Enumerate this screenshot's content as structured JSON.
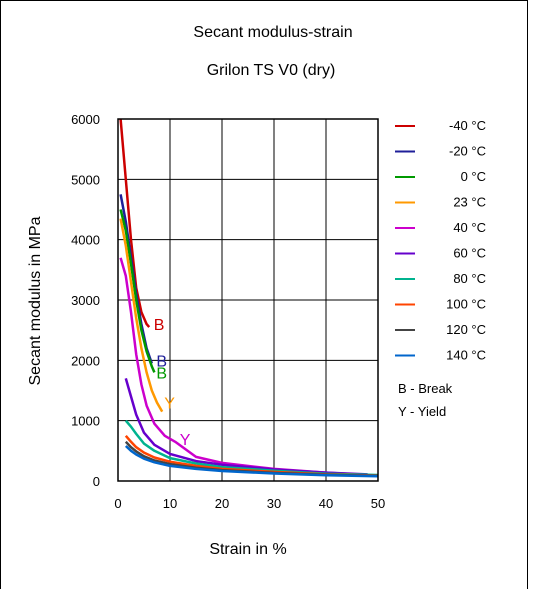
{
  "chart_data": {
    "type": "line",
    "title": "Secant modulus-strain",
    "subtitle": "Grilon TS V0 (dry)",
    "xlabel": "Strain in %",
    "ylabel": "Secant modulus in MPa",
    "xlim": [
      0,
      50
    ],
    "ylim": [
      0,
      6000
    ],
    "xticks": [
      "0",
      "10",
      "20",
      "30",
      "40",
      "50"
    ],
    "yticks": [
      "0",
      "1000",
      "2000",
      "3000",
      "4000",
      "5000",
      "6000"
    ],
    "grid": true,
    "legend_position": "right",
    "notes": [
      "B - Break",
      "Y - Yield"
    ],
    "series": [
      {
        "name": "-40 °C",
        "color": "#cc0000",
        "points": [
          [
            0.5,
            6000
          ],
          [
            1.5,
            5000
          ],
          [
            2.5,
            4000
          ],
          [
            3.5,
            3200
          ],
          [
            4.5,
            2800
          ],
          [
            5.5,
            2600
          ],
          [
            6.0,
            2550
          ]
        ],
        "label": "B",
        "label_at": [
          6.5,
          2600
        ]
      },
      {
        "name": "-20 °C",
        "color": "#1f1f99",
        "points": [
          [
            0.5,
            4750
          ],
          [
            1.5,
            4300
          ],
          [
            2.5,
            3700
          ],
          [
            3.5,
            3100
          ],
          [
            4.5,
            2600
          ],
          [
            5.5,
            2200
          ],
          [
            6.5,
            1950
          ]
        ],
        "label": "B",
        "label_at": [
          7.0,
          2000
        ]
      },
      {
        "name": "0 °C",
        "color": "#009900",
        "points": [
          [
            0.5,
            4500
          ],
          [
            1.5,
            4150
          ],
          [
            2.5,
            3600
          ],
          [
            3.5,
            3000
          ],
          [
            4.5,
            2500
          ],
          [
            5.5,
            2150
          ],
          [
            6.5,
            1900
          ],
          [
            7.0,
            1800
          ]
        ],
        "label": "B",
        "label_at": [
          7.0,
          1800
        ]
      },
      {
        "name": "23 °C",
        "color": "#ff9900",
        "points": [
          [
            0.5,
            4350
          ],
          [
            1.5,
            3900
          ],
          [
            2.5,
            3300
          ],
          [
            3.5,
            2700
          ],
          [
            4.5,
            2200
          ],
          [
            5.5,
            1800
          ],
          [
            6.5,
            1500
          ],
          [
            7.5,
            1300
          ],
          [
            8.5,
            1150
          ]
        ],
        "label": "Y",
        "label_at": [
          8.5,
          1300
        ]
      },
      {
        "name": "40 °C",
        "color": "#cc00cc",
        "points": [
          [
            0.5,
            3700
          ],
          [
            1.5,
            3400
          ],
          [
            2.5,
            2800
          ],
          [
            3.5,
            2100
          ],
          [
            4.5,
            1600
          ],
          [
            5.5,
            1250
          ],
          [
            7,
            950
          ],
          [
            9,
            750
          ],
          [
            11,
            650
          ],
          [
            15,
            400
          ],
          [
            20,
            300
          ],
          [
            30,
            200
          ],
          [
            40,
            140
          ],
          [
            44,
            120
          ]
        ],
        "label": "Y",
        "label_at": [
          11.5,
          700
        ]
      },
      {
        "name": "60 °C",
        "color": "#6600cc",
        "points": [
          [
            1.5,
            1700
          ],
          [
            2.5,
            1400
          ],
          [
            3.5,
            1100
          ],
          [
            5,
            800
          ],
          [
            7,
            600
          ],
          [
            10,
            450
          ],
          [
            15,
            330
          ],
          [
            20,
            270
          ],
          [
            30,
            190
          ],
          [
            40,
            140
          ],
          [
            48,
            110
          ]
        ]
      },
      {
        "name": "80 °C",
        "color": "#00b38f",
        "points": [
          [
            1.5,
            1000
          ],
          [
            2.5,
            900
          ],
          [
            3.5,
            780
          ],
          [
            5,
            620
          ],
          [
            7,
            500
          ],
          [
            10,
            380
          ],
          [
            15,
            290
          ],
          [
            20,
            230
          ],
          [
            30,
            170
          ],
          [
            40,
            120
          ],
          [
            50,
            100
          ]
        ]
      },
      {
        "name": "100 °C",
        "color": "#ff4400",
        "points": [
          [
            1.5,
            750
          ],
          [
            2.5,
            650
          ],
          [
            3.5,
            560
          ],
          [
            5,
            470
          ],
          [
            7,
            390
          ],
          [
            10,
            320
          ],
          [
            15,
            250
          ],
          [
            20,
            200
          ],
          [
            30,
            150
          ],
          [
            40,
            110
          ],
          [
            50,
            90
          ]
        ]
      },
      {
        "name": "120 °C",
        "color": "#444444",
        "points": [
          [
            1.5,
            650
          ],
          [
            2.5,
            560
          ],
          [
            3.5,
            490
          ],
          [
            5,
            410
          ],
          [
            7,
            340
          ],
          [
            10,
            280
          ],
          [
            15,
            220
          ],
          [
            20,
            180
          ],
          [
            30,
            135
          ],
          [
            40,
            105
          ],
          [
            50,
            85
          ]
        ]
      },
      {
        "name": "140 °C",
        "color": "#0066cc",
        "points": [
          [
            1.5,
            580
          ],
          [
            2.5,
            500
          ],
          [
            3.5,
            440
          ],
          [
            5,
            370
          ],
          [
            7,
            310
          ],
          [
            10,
            250
          ],
          [
            15,
            200
          ],
          [
            20,
            165
          ],
          [
            30,
            125
          ],
          [
            40,
            95
          ],
          [
            50,
            80
          ]
        ]
      }
    ]
  }
}
